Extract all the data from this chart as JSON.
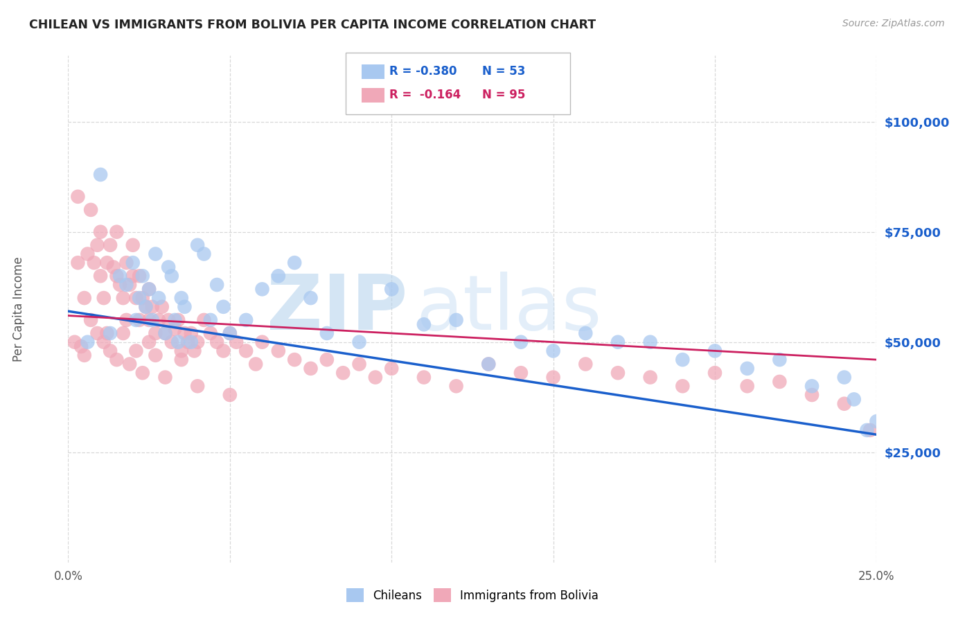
{
  "title": "CHILEAN VS IMMIGRANTS FROM BOLIVIA PER CAPITA INCOME CORRELATION CHART",
  "source": "Source: ZipAtlas.com",
  "ylabel": "Per Capita Income",
  "xlim": [
    0.0,
    0.25
  ],
  "ylim": [
    0,
    115000
  ],
  "yticks": [
    25000,
    50000,
    75000,
    100000
  ],
  "ytick_labels": [
    "$25,000",
    "$50,000",
    "$75,000",
    "$100,000"
  ],
  "xticks": [
    0.0,
    0.05,
    0.1,
    0.15,
    0.2,
    0.25
  ],
  "xtick_labels": [
    "0.0%",
    "",
    "",
    "",
    "",
    "25.0%"
  ],
  "bg_color": "#ffffff",
  "grid_color": "#d8d8d8",
  "blue_color": "#A8C8F0",
  "pink_color": "#F0A8B8",
  "blue_line_color": "#1A5FCC",
  "pink_line_color": "#CC2060",
  "watermark_zip": "ZIP",
  "watermark_atlas": "atlas",
  "legend_r_blue": "R = -0.380",
  "legend_n_blue": "N = 53",
  "legend_r_pink": "R =  -0.164",
  "legend_n_pink": "N = 95",
  "blue_scatter_x": [
    0.006,
    0.01,
    0.013,
    0.016,
    0.018,
    0.02,
    0.021,
    0.022,
    0.023,
    0.024,
    0.025,
    0.026,
    0.027,
    0.028,
    0.03,
    0.031,
    0.032,
    0.033,
    0.034,
    0.035,
    0.036,
    0.038,
    0.04,
    0.042,
    0.044,
    0.046,
    0.048,
    0.05,
    0.055,
    0.06,
    0.065,
    0.07,
    0.075,
    0.08,
    0.09,
    0.1,
    0.11,
    0.12,
    0.13,
    0.14,
    0.15,
    0.16,
    0.17,
    0.18,
    0.19,
    0.2,
    0.21,
    0.22,
    0.23,
    0.24,
    0.243,
    0.247,
    0.25
  ],
  "blue_scatter_y": [
    50000,
    88000,
    52000,
    65000,
    63000,
    68000,
    55000,
    60000,
    65000,
    58000,
    62000,
    55000,
    70000,
    60000,
    52000,
    67000,
    65000,
    55000,
    50000,
    60000,
    58000,
    50000,
    72000,
    70000,
    55000,
    63000,
    58000,
    52000,
    55000,
    62000,
    65000,
    68000,
    60000,
    52000,
    50000,
    62000,
    54000,
    55000,
    45000,
    50000,
    48000,
    52000,
    50000,
    50000,
    46000,
    48000,
    44000,
    46000,
    40000,
    42000,
    37000,
    30000,
    32000
  ],
  "pink_scatter_x": [
    0.002,
    0.003,
    0.004,
    0.005,
    0.006,
    0.007,
    0.008,
    0.009,
    0.01,
    0.01,
    0.011,
    0.012,
    0.012,
    0.013,
    0.014,
    0.015,
    0.015,
    0.016,
    0.017,
    0.018,
    0.018,
    0.019,
    0.02,
    0.02,
    0.021,
    0.022,
    0.022,
    0.023,
    0.024,
    0.025,
    0.025,
    0.026,
    0.027,
    0.028,
    0.029,
    0.03,
    0.031,
    0.032,
    0.033,
    0.034,
    0.035,
    0.036,
    0.037,
    0.038,
    0.039,
    0.04,
    0.042,
    0.044,
    0.046,
    0.048,
    0.05,
    0.052,
    0.055,
    0.058,
    0.06,
    0.065,
    0.07,
    0.075,
    0.08,
    0.085,
    0.09,
    0.095,
    0.1,
    0.11,
    0.12,
    0.13,
    0.14,
    0.15,
    0.16,
    0.17,
    0.18,
    0.19,
    0.2,
    0.21,
    0.22,
    0.23,
    0.24,
    0.248,
    0.003,
    0.005,
    0.007,
    0.009,
    0.011,
    0.013,
    0.015,
    0.017,
    0.019,
    0.021,
    0.023,
    0.025,
    0.027,
    0.03,
    0.035,
    0.04,
    0.05
  ],
  "pink_scatter_y": [
    50000,
    83000,
    49000,
    47000,
    70000,
    80000,
    68000,
    72000,
    65000,
    75000,
    60000,
    68000,
    52000,
    72000,
    67000,
    65000,
    75000,
    63000,
    60000,
    68000,
    55000,
    63000,
    65000,
    72000,
    60000,
    65000,
    55000,
    60000,
    58000,
    62000,
    55000,
    58000,
    52000,
    55000,
    58000,
    52000,
    55000,
    50000,
    53000,
    55000,
    48000,
    52000,
    50000,
    52000,
    48000,
    50000,
    55000,
    52000,
    50000,
    48000,
    52000,
    50000,
    48000,
    45000,
    50000,
    48000,
    46000,
    44000,
    46000,
    43000,
    45000,
    42000,
    44000,
    42000,
    40000,
    45000,
    43000,
    42000,
    45000,
    43000,
    42000,
    40000,
    43000,
    40000,
    41000,
    38000,
    36000,
    30000,
    68000,
    60000,
    55000,
    52000,
    50000,
    48000,
    46000,
    52000,
    45000,
    48000,
    43000,
    50000,
    47000,
    42000,
    46000,
    40000,
    38000
  ],
  "blue_line_x": [
    0.0,
    0.25
  ],
  "blue_line_y": [
    57000,
    29000
  ],
  "pink_line_x": [
    0.0,
    0.25
  ],
  "pink_line_y": [
    56000,
    46000
  ]
}
